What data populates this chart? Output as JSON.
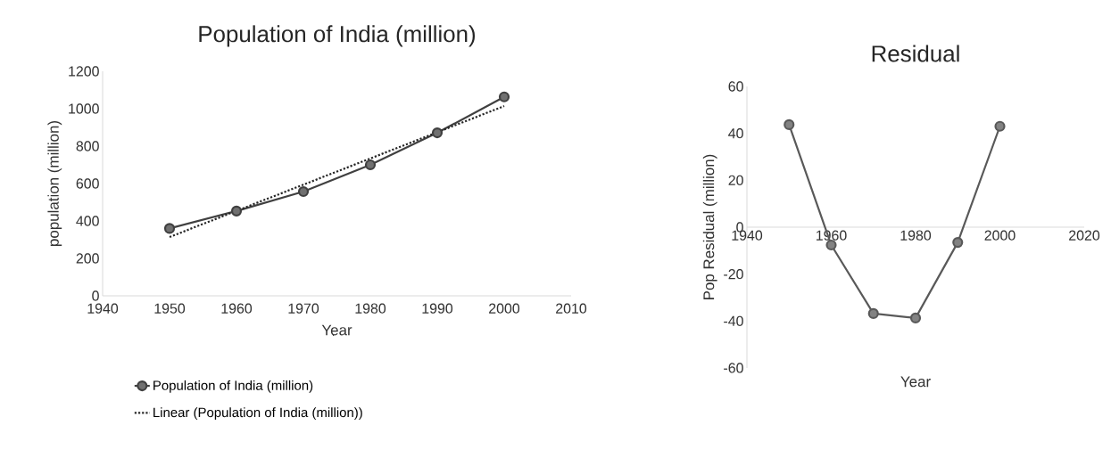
{
  "chart_data": [
    {
      "type": "line",
      "title": "Population of India (million)",
      "xlabel": "Year",
      "ylabel": "population (million)",
      "x": [
        1950,
        1960,
        1970,
        1980,
        1990,
        2000
      ],
      "series": [
        {
          "name": "Population of India (million)",
          "color": "#404040",
          "values": [
            360,
            453,
            557,
            700,
            871,
            1063
          ],
          "marker": "circle",
          "line_style": "solid"
        },
        {
          "name": "Linear (Population of India (million))",
          "color": "#262626",
          "type": "line",
          "x": [
            1950,
            2000
          ],
          "values": [
            314,
            1014
          ],
          "marker": "none",
          "line_style": "dotted"
        }
      ],
      "xlim": [
        1940,
        2010
      ],
      "ylim": [
        0,
        1200
      ],
      "xticks": [
        1940,
        1950,
        1960,
        1970,
        1980,
        1990,
        2000,
        2010
      ],
      "yticks": [
        0,
        200,
        400,
        600,
        800,
        1000,
        1200
      ],
      "legend": "bottom",
      "grid": false
    },
    {
      "type": "line",
      "title": "Residual",
      "xlabel": "Year",
      "ylabel": "Pop Residual (million)",
      "x": [
        1950,
        1960,
        1970,
        1980,
        1990,
        2000
      ],
      "series": [
        {
          "color": "#595959",
          "values": [
            43.7,
            -7.6,
            -36.8,
            -38.7,
            -6.5,
            43
          ],
          "marker": "circle",
          "line_style": "solid"
        }
      ],
      "xlim": [
        1940,
        2020
      ],
      "ylim": [
        -60,
        60
      ],
      "xticks": [
        1940,
        1960,
        1980,
        2000,
        2020
      ],
      "yticks": [
        -60,
        -40,
        -20,
        0,
        20,
        40,
        60
      ],
      "legend": false,
      "grid": false
    }
  ]
}
